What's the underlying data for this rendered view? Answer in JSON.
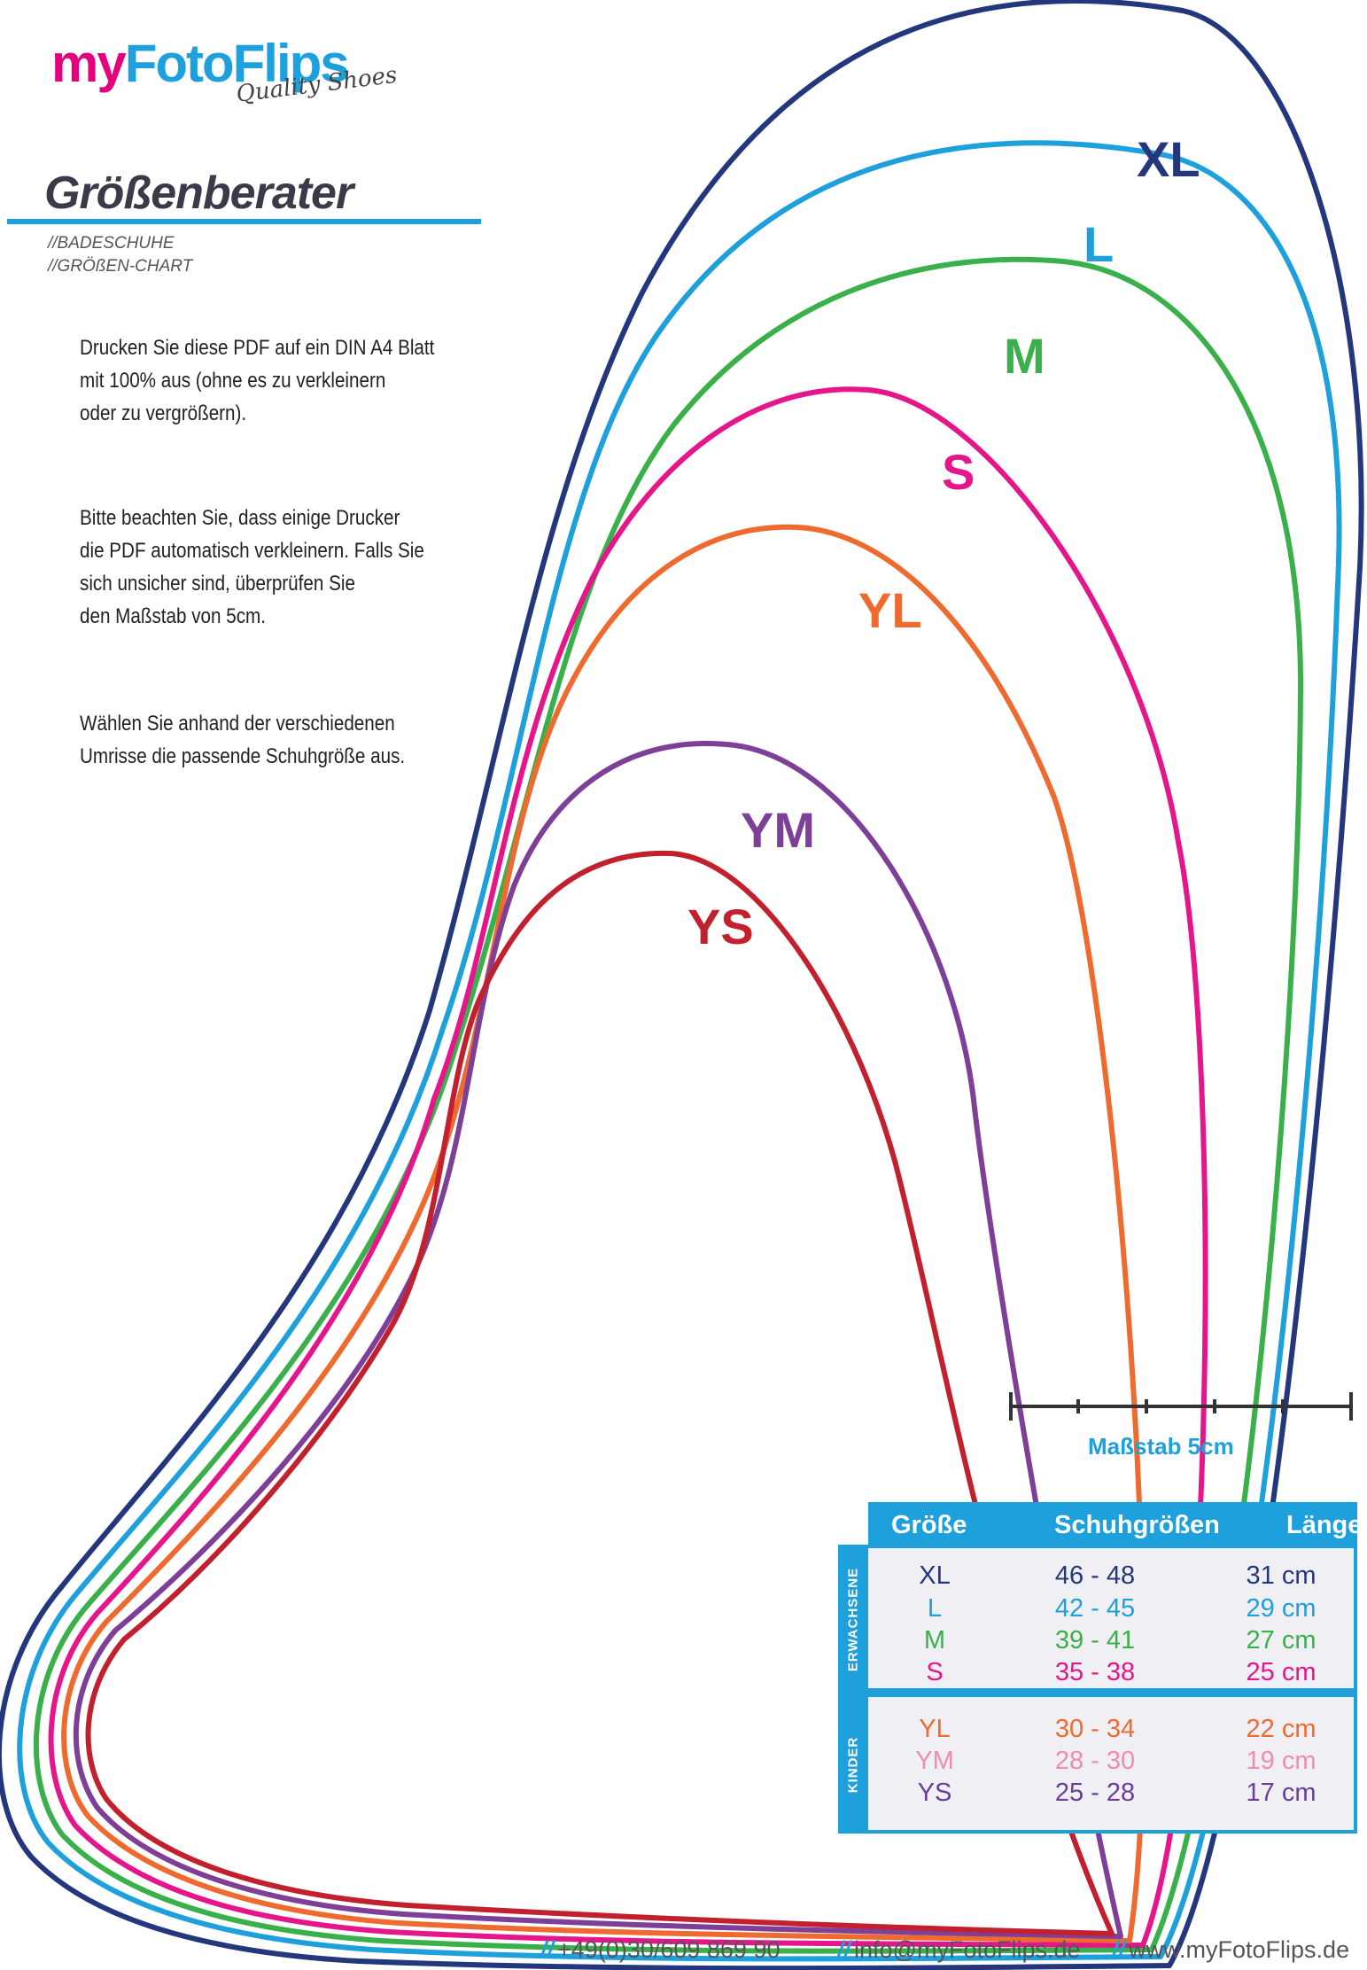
{
  "brand": {
    "logo_my": "my",
    "logo_rest": "FotoFlips",
    "tagline": "Quality Shoes",
    "accent": "#1da0dc",
    "magenta": "#e5007e"
  },
  "header": {
    "title": "Größenberater",
    "sub1": "//BADESCHUHE",
    "sub2": "//GRÖßEN-CHART"
  },
  "instructions": {
    "p1": [
      "Drucken Sie diese PDF auf ein DIN A4 Blatt",
      "mit 100% aus (ohne es zu verkleinern",
      "oder zu vergrößern)."
    ],
    "p2": [
      "Bitte beachten Sie, dass einige Drucker",
      "die PDF automatisch verkleinern. Falls Sie",
      "sich unsicher sind, überprüfen Sie",
      "den Maßstab von 5cm."
    ],
    "p3": [
      "Wählen Sie anhand der verschiedenen",
      "Umrisse die passende Schuhgröße aus."
    ]
  },
  "outline_labels": {
    "xl": "XL",
    "l": "L",
    "m": "M",
    "s": "S",
    "yl": "YL",
    "ym": "YM",
    "ys": "YS"
  },
  "colors": {
    "xl": "#24377d",
    "l": "#1da0dc",
    "m": "#3ab04a",
    "s": "#e5168c",
    "yl": "#ef6a2e",
    "ym": "#7d3f98",
    "ys": "#c3202e"
  },
  "scale": {
    "label": "Maßstab 5cm",
    "length_cm": 5
  },
  "table": {
    "headers": [
      "Größe",
      "Schuhgrößen",
      "Länge"
    ],
    "group_adults": "ERWACHSENE",
    "group_kids": "KINDER",
    "adults": [
      {
        "size": "XL",
        "shoe": "46 - 48",
        "length": "31 cm",
        "color": "#24377d"
      },
      {
        "size": "L",
        "shoe": "42 - 45",
        "length": "29 cm",
        "color": "#1da0dc"
      },
      {
        "size": "M",
        "shoe": "39 - 41",
        "length": "27 cm",
        "color": "#3ab04a"
      },
      {
        "size": "S",
        "shoe": "35 - 38",
        "length": "25 cm",
        "color": "#e5168c"
      }
    ],
    "kids": [
      {
        "size": "YL",
        "shoe": "30 - 34",
        "length": "22 cm",
        "color": "#ef6a2e"
      },
      {
        "size": "YM",
        "shoe": "28 - 30",
        "length": "19 cm",
        "color": "#f08bb4"
      },
      {
        "size": "YS",
        "shoe": "25 - 28",
        "length": "17 cm",
        "color": "#6a3d96"
      }
    ]
  },
  "footer": {
    "phone": "+49(0)30/609 869 90",
    "email": "info@myFotoFlips.de",
    "web": "www.myFotoFlips.de"
  }
}
